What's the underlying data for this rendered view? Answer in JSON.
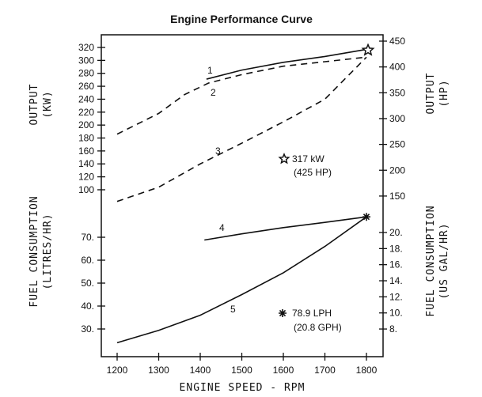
{
  "chart_data": {
    "type": "line",
    "title": "Engine Performance Curve",
    "xlabel": "ENGINE SPEED - RPM",
    "xlim": [
      1160,
      1840
    ],
    "xticks": [
      1200,
      1300,
      1400,
      1500,
      1600,
      1700,
      1800
    ],
    "axes": {
      "left_top": {
        "label": [
          "OUTPUT",
          "(KW)"
        ],
        "ticks": [
          100,
          120,
          140,
          160,
          180,
          200,
          220,
          240,
          260,
          280,
          300,
          320
        ]
      },
      "right_top": {
        "label": [
          "OUTPUT",
          "(HP)"
        ],
        "ticks": [
          150,
          200,
          250,
          300,
          350,
          400,
          450
        ]
      },
      "left_bottom": {
        "label": [
          "FUEL CONSUMPTION",
          "(LITRES/HR)"
        ],
        "ticks": [
          "30.",
          "40.",
          "50.",
          "60.",
          "70."
        ]
      },
      "right_bottom": {
        "label": [
          "FUEL CONSUMPTION",
          "(US GAL/HR)"
        ],
        "ticks": [
          "8.",
          "10.",
          "12.",
          "14.",
          "16.",
          "18.",
          "20."
        ]
      }
    },
    "grid": false,
    "series": [
      {
        "name": "1",
        "axis": "kW",
        "style": "solid",
        "x": [
          1415,
          1500,
          1600,
          1700,
          1800
        ],
        "y": [
          271,
          285,
          297,
          306,
          317
        ]
      },
      {
        "name": "2",
        "axis": "kW",
        "style": "dashed",
        "x": [
          1200,
          1300,
          1362,
          1420,
          1500,
          1600,
          1700,
          1800
        ],
        "y": [
          186,
          218,
          247,
          265,
          278,
          291,
          298,
          305
        ]
      },
      {
        "name": "3",
        "axis": "kW",
        "style": "dashed",
        "x": [
          1200,
          1300,
          1400,
          1500,
          1600,
          1700,
          1800
        ],
        "y": [
          82,
          104,
          140,
          172,
          205,
          240,
          305
        ]
      },
      {
        "name": "4",
        "axis": "L/hr",
        "style": "solid",
        "x": [
          1410,
          1500,
          1600,
          1700,
          1800
        ],
        "y": [
          68.8,
          71.5,
          74.2,
          76.5,
          78.9
        ]
      },
      {
        "name": "5",
        "axis": "L/hr",
        "style": "solid",
        "x": [
          1200,
          1300,
          1400,
          1500,
          1600,
          1700,
          1800
        ],
        "y": [
          24,
          29.4,
          36,
          45,
          54.5,
          66,
          78.9
        ]
      }
    ],
    "markers": [
      {
        "symbol": "star",
        "x": 1800,
        "y": 317,
        "axis": "kW"
      },
      {
        "symbol": "asterisk",
        "x": 1800,
        "y": 78.9,
        "axis": "L/hr"
      }
    ],
    "annotations": {
      "power": [
        "317 kW",
        "(425 HP)"
      ],
      "fuel": [
        "78.9 LPH",
        "(20.8 GPH)"
      ]
    }
  }
}
